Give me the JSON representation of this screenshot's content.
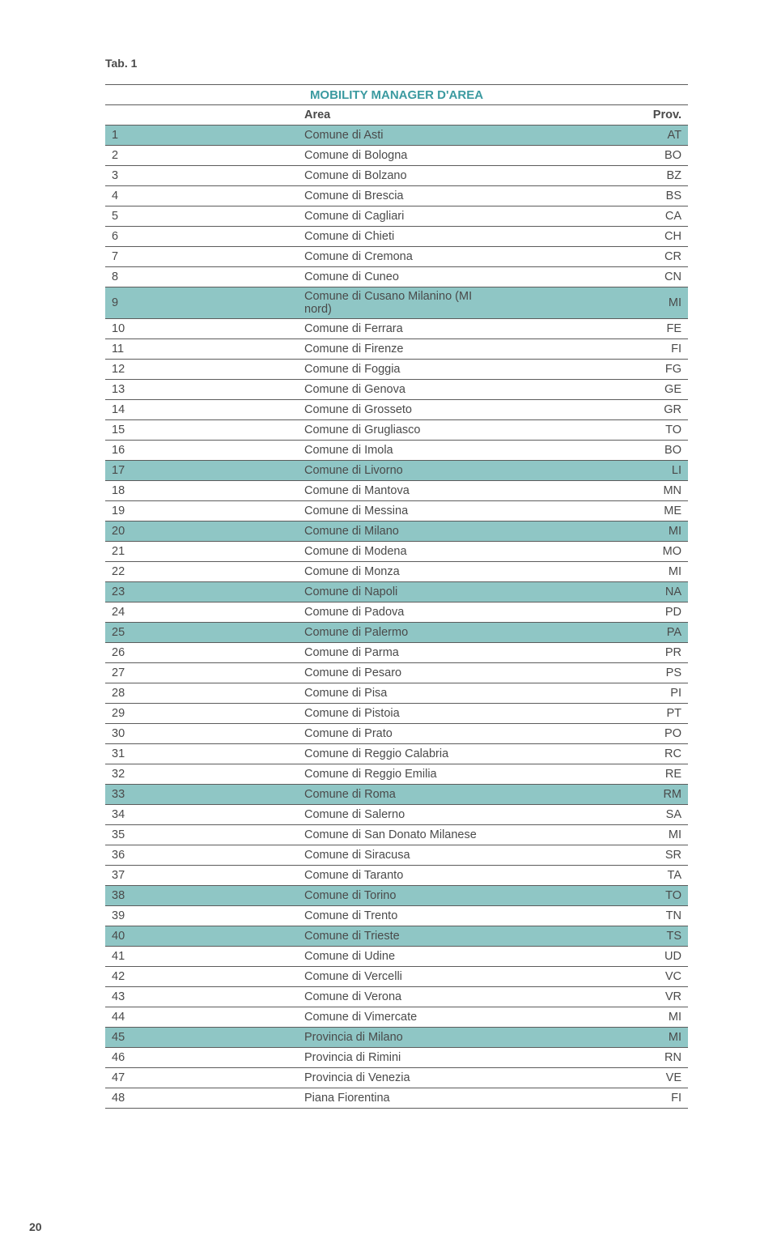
{
  "tab_label": "Tab. 1",
  "title": "MOBILITY MANAGER D'AREA",
  "title_color": "#3b9aa0",
  "highlight_bg": "#8fc6c5",
  "border_color": "#5c5c5c",
  "text_color": "#4a4a4a",
  "columns": {
    "area": "Area",
    "prov": "Prov."
  },
  "rows": [
    {
      "n": "1",
      "area": "Comune di Asti",
      "prov": "AT",
      "hl": true
    },
    {
      "n": "2",
      "area": "Comune di Bologna",
      "prov": "BO",
      "hl": false
    },
    {
      "n": "3",
      "area": "Comune di Bolzano",
      "prov": "BZ",
      "hl": false
    },
    {
      "n": "4",
      "area": "Comune di Brescia",
      "prov": "BS",
      "hl": false
    },
    {
      "n": "5",
      "area": "Comune di Cagliari",
      "prov": "CA",
      "hl": false
    },
    {
      "n": "6",
      "area": "Comune di Chieti",
      "prov": "CH",
      "hl": false
    },
    {
      "n": "7",
      "area": "Comune di Cremona",
      "prov": "CR",
      "hl": false
    },
    {
      "n": "8",
      "area": "Comune di Cuneo",
      "prov": "CN",
      "hl": false
    },
    {
      "n": "9",
      "area": "Comune di Cusano Milanino (MI nord)",
      "prov": "MI",
      "hl": true
    },
    {
      "n": "10",
      "area": "Comune di Ferrara",
      "prov": "FE",
      "hl": false
    },
    {
      "n": "11",
      "area": "Comune di Firenze",
      "prov": "FI",
      "hl": false
    },
    {
      "n": "12",
      "area": "Comune di Foggia",
      "prov": "FG",
      "hl": false
    },
    {
      "n": "13",
      "area": "Comune di Genova",
      "prov": "GE",
      "hl": false
    },
    {
      "n": "14",
      "area": "Comune di Grosseto",
      "prov": "GR",
      "hl": false
    },
    {
      "n": "15",
      "area": "Comune di Grugliasco",
      "prov": "TO",
      "hl": false
    },
    {
      "n": "16",
      "area": "Comune di Imola",
      "prov": "BO",
      "hl": false
    },
    {
      "n": "17",
      "area": "Comune di Livorno",
      "prov": "LI",
      "hl": true
    },
    {
      "n": "18",
      "area": "Comune di Mantova",
      "prov": "MN",
      "hl": false
    },
    {
      "n": "19",
      "area": "Comune di Messina",
      "prov": "ME",
      "hl": false
    },
    {
      "n": "20",
      "area": "Comune di Milano",
      "prov": "MI",
      "hl": true
    },
    {
      "n": "21",
      "area": "Comune di Modena",
      "prov": "MO",
      "hl": false
    },
    {
      "n": "22",
      "area": "Comune di Monza",
      "prov": "MI",
      "hl": false
    },
    {
      "n": "23",
      "area": "Comune di Napoli",
      "prov": "NA",
      "hl": true
    },
    {
      "n": "24",
      "area": "Comune di Padova",
      "prov": "PD",
      "hl": false
    },
    {
      "n": "25",
      "area": "Comune di Palermo",
      "prov": "PA",
      "hl": true
    },
    {
      "n": "26",
      "area": "Comune di Parma",
      "prov": "PR",
      "hl": false
    },
    {
      "n": "27",
      "area": "Comune di Pesaro",
      "prov": "PS",
      "hl": false
    },
    {
      "n": "28",
      "area": "Comune di Pisa",
      "prov": "PI",
      "hl": false
    },
    {
      "n": "29",
      "area": "Comune di Pistoia",
      "prov": "PT",
      "hl": false
    },
    {
      "n": "30",
      "area": "Comune di Prato",
      "prov": "PO",
      "hl": false
    },
    {
      "n": "31",
      "area": "Comune di Reggio Calabria",
      "prov": "RC",
      "hl": false
    },
    {
      "n": "32",
      "area": "Comune di Reggio Emilia",
      "prov": "RE",
      "hl": false
    },
    {
      "n": "33",
      "area": "Comune di Roma",
      "prov": "RM",
      "hl": true
    },
    {
      "n": "34",
      "area": "Comune di Salerno",
      "prov": "SA",
      "hl": false
    },
    {
      "n": "35",
      "area": "Comune di San Donato Milanese",
      "prov": "MI",
      "hl": false
    },
    {
      "n": "36",
      "area": "Comune di Siracusa",
      "prov": "SR",
      "hl": false
    },
    {
      "n": "37",
      "area": "Comune di Taranto",
      "prov": "TA",
      "hl": false
    },
    {
      "n": "38",
      "area": "Comune di Torino",
      "prov": "TO",
      "hl": true
    },
    {
      "n": "39",
      "area": "Comune di Trento",
      "prov": "TN",
      "hl": false
    },
    {
      "n": "40",
      "area": "Comune di Trieste",
      "prov": "TS",
      "hl": true
    },
    {
      "n": "41",
      "area": "Comune di Udine",
      "prov": "UD",
      "hl": false
    },
    {
      "n": "42",
      "area": "Comune di Vercelli",
      "prov": "VC",
      "hl": false
    },
    {
      "n": "43",
      "area": "Comune di Verona",
      "prov": "VR",
      "hl": false
    },
    {
      "n": "44",
      "area": "Comune di Vimercate",
      "prov": "MI",
      "hl": false
    },
    {
      "n": "45",
      "area": "Provincia di Milano",
      "prov": "MI",
      "hl": true
    },
    {
      "n": "46",
      "area": "Provincia di Rimini",
      "prov": "RN",
      "hl": false
    },
    {
      "n": "47",
      "area": "Provincia di Venezia",
      "prov": "VE",
      "hl": false
    },
    {
      "n": "48",
      "area": "Piana Fiorentina",
      "prov": "FI",
      "hl": false
    }
  ],
  "page_number": "20"
}
